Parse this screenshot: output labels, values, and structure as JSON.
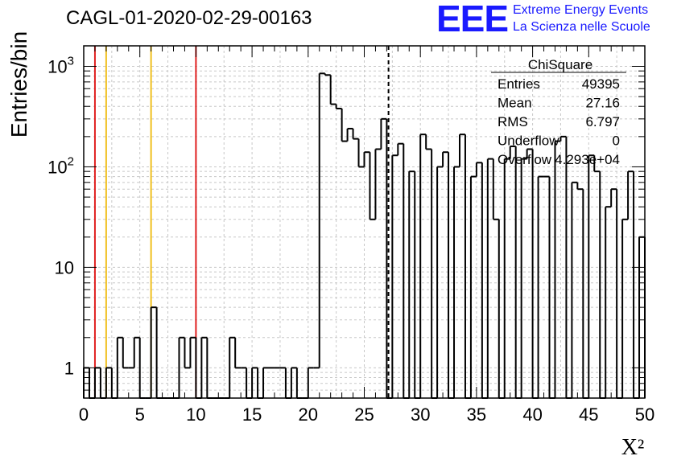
{
  "title": "CAGL-01-2020-02-29-00163",
  "logo": {
    "mark": "EEE",
    "line1": "Extreme Energy Events",
    "line2": "La Scienza nelle Scuole",
    "color": "#1a1aff"
  },
  "chart_data": {
    "type": "histogram",
    "title": "CAGL-01-2020-02-29-00163",
    "xlabel": "X²",
    "ylabel": "Entries/bin",
    "xlim": [
      0,
      50
    ],
    "ylim": [
      0.5,
      1600
    ],
    "yscale": "log",
    "grid": true,
    "bin_width": 0.5,
    "x_ticks": [
      "0",
      "5",
      "10",
      "15",
      "20",
      "25",
      "30",
      "35",
      "40",
      "45",
      "50"
    ],
    "y_ticks": [
      {
        "value": 1,
        "label": "1"
      },
      {
        "value": 10,
        "label": "10"
      },
      {
        "value": 100,
        "label": "10",
        "exp": "2"
      },
      {
        "value": 1000,
        "label": "10",
        "exp": "3"
      }
    ],
    "bin_counts": [
      1,
      0,
      1,
      0,
      1,
      0,
      2,
      1,
      1,
      2,
      0,
      0,
      4,
      0,
      0,
      0,
      0,
      2,
      1,
      2,
      0,
      2,
      0,
      0,
      0,
      0,
      2,
      1,
      1,
      0,
      1,
      0,
      1,
      1,
      1,
      1,
      0,
      1,
      0,
      0,
      1,
      1,
      850,
      820,
      420,
      380,
      180,
      240,
      190,
      100,
      140,
      30,
      150,
      300,
      0,
      130,
      170,
      0,
      90,
      0,
      210,
      150,
      0,
      100,
      140,
      0,
      100,
      210,
      0,
      80,
      110,
      0,
      120,
      30,
      0,
      120,
      160,
      0,
      120,
      150,
      0,
      80,
      80,
      0,
      180,
      200,
      0,
      70,
      60,
      0,
      130,
      90,
      0,
      40,
      60,
      0,
      30,
      90,
      0,
      20
    ],
    "reference_lines": [
      {
        "x": 1,
        "color": "#e02020",
        "style": "solid"
      },
      {
        "x": 2,
        "color": "#f0c020",
        "style": "solid"
      },
      {
        "x": 6,
        "color": "#f0c020",
        "style": "solid"
      },
      {
        "x": 10,
        "color": "#e02020",
        "style": "solid"
      },
      {
        "x": 27.16,
        "color": "#000000",
        "style": "dashed"
      }
    ],
    "stats_box": {
      "title": "ChiSquare",
      "rows": [
        {
          "label": "Entries",
          "value": "49395"
        },
        {
          "label": "Mean",
          "value": "27.16"
        },
        {
          "label": "RMS",
          "value": "6.797"
        },
        {
          "label": "Underflow",
          "value": "0"
        },
        {
          "label": "Overflow",
          "value": "4.293e+04"
        }
      ]
    }
  }
}
